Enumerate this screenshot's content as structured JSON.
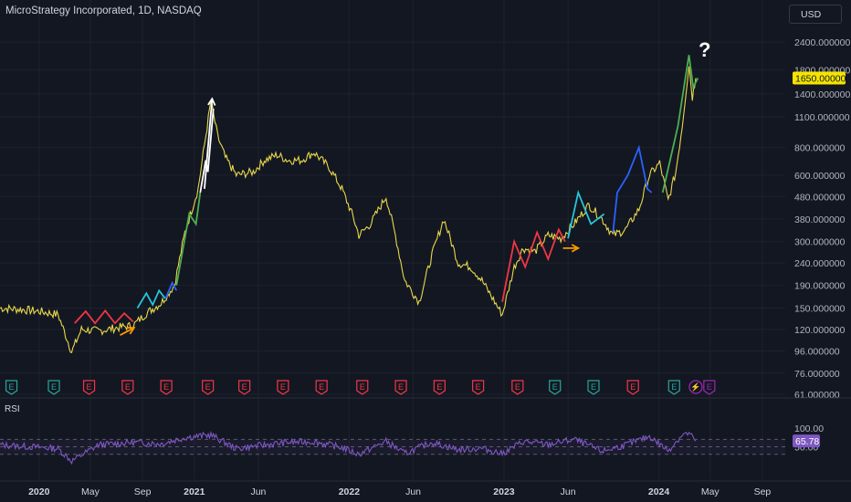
{
  "header": {
    "title": "MicroStrategy Incorporated, 1D, NASDAQ",
    "currency": "USD"
  },
  "colors": {
    "background": "#131722",
    "price": "#e8d84a",
    "red_zigzag": "#f23645",
    "blue_zigzag": "#2962ff",
    "cyan_zigzag": "#26c6da",
    "green_zigzag": "#4caf50",
    "orange_arrow": "#ff9800",
    "rsi": "#7e57c2",
    "current_price_bg": "#f5e400"
  },
  "annotations": {
    "question_mark": "?"
  },
  "earnings_markers": [
    {
      "label": "E",
      "type": "positive"
    },
    {
      "label": "E",
      "type": "positive"
    },
    {
      "label": "E",
      "type": "negative"
    },
    {
      "label": "E",
      "type": "negative"
    },
    {
      "label": "E",
      "type": "negative"
    },
    {
      "label": "E",
      "type": "negative"
    },
    {
      "label": "E",
      "type": "negative"
    },
    {
      "label": "E",
      "type": "negative"
    },
    {
      "label": "E",
      "type": "negative"
    },
    {
      "label": "E",
      "type": "negative"
    },
    {
      "label": "E",
      "type": "negative"
    },
    {
      "label": "E",
      "type": "negative"
    },
    {
      "label": "E",
      "type": "negative"
    },
    {
      "label": "E",
      "type": "negative"
    },
    {
      "label": "E",
      "type": "positive"
    },
    {
      "label": "E",
      "type": "positive"
    },
    {
      "label": "E",
      "type": "negative"
    },
    {
      "label": "E",
      "type": "positive"
    },
    {
      "label": "⚡",
      "type": "split"
    },
    {
      "label": "E",
      "type": "upcoming"
    }
  ],
  "chart_data": [
    {
      "type": "line",
      "title": "MicroStrategy Incorporated, 1D, NASDAQ",
      "scale": "log",
      "ylim": [
        61,
        2800
      ],
      "y_ticks": [
        "2400.000000",
        "1800.000000",
        "1400.000000",
        "1100.000000",
        "800.000000",
        "600.000000",
        "480.000000",
        "380.000000",
        "300.000000",
        "240.000000",
        "190.000000",
        "150.000000",
        "120.000000",
        "96.000000",
        "76.000000",
        "61.000000"
      ],
      "current_price_label": "1650.000000",
      "x_ticks": [
        "2020",
        "May",
        "Sep",
        "2021",
        "Jun",
        "2022",
        "Jun",
        "2023",
        "Jun",
        "2024",
        "May",
        "Sep"
      ],
      "series": [
        {
          "x": [
            "2019-10-01",
            "2019-11-15",
            "2020-01-01",
            "2020-02-15",
            "2020-03-18",
            "2020-04-10",
            "2020-05-20",
            "2020-07-01",
            "2020-08-10",
            "2020-09-10",
            "2020-10-15",
            "2020-11-15",
            "2020-12-10",
            "2021-01-10",
            "2021-02-09",
            "2021-02-25",
            "2021-03-15",
            "2021-04-10",
            "2021-05-20",
            "2021-06-15",
            "2021-07-15",
            "2021-08-10",
            "2021-09-10",
            "2021-10-10",
            "2021-11-15",
            "2021-12-15",
            "2022-01-10",
            "2022-01-24",
            "2022-02-20",
            "2022-03-29",
            "2022-04-20",
            "2022-05-12",
            "2022-06-15",
            "2022-07-15",
            "2022-08-12",
            "2022-09-15",
            "2022-10-15",
            "2022-11-10",
            "2022-12-28",
            "2023-01-25",
            "2023-02-15",
            "2023-03-15",
            "2023-04-15",
            "2023-05-15",
            "2023-06-15",
            "2023-07-20",
            "2023-08-20",
            "2023-09-15",
            "2023-10-15",
            "2023-11-15",
            "2023-12-10",
            "2024-01-03",
            "2024-01-23",
            "2024-02-10",
            "2024-02-25",
            "2024-03-12",
            "2024-03-20",
            "2024-03-28"
          ],
          "y": [
            150,
            148,
            145,
            140,
            95,
            120,
            118,
            122,
            125,
            142,
            158,
            190,
            330,
            520,
            1300,
            900,
            720,
            600,
            620,
            700,
            740,
            700,
            700,
            760,
            650,
            520,
            390,
            320,
            360,
            480,
            320,
            200,
            160,
            260,
            380,
            240,
            230,
            200,
            140,
            230,
            280,
            270,
            320,
            310,
            360,
            440,
            380,
            320,
            340,
            420,
            600,
            680,
            460,
            620,
            1000,
            1900,
            1350,
            1650
          ]
        }
      ]
    },
    {
      "type": "line",
      "title": "RSI",
      "ylim": [
        0,
        100
      ],
      "y_ticks": [
        "100.00",
        "50.00"
      ],
      "current_value_label": "65.78",
      "series": [
        {
          "name": "RSI",
          "x": [
            "2019-10-01",
            "2019-12-15",
            "2020-02-15",
            "2020-03-18",
            "2020-05-20",
            "2020-08-10",
            "2020-10-15",
            "2020-12-10",
            "2021-02-09",
            "2021-04-10",
            "2021-06-15",
            "2021-08-10",
            "2021-10-10",
            "2021-12-15",
            "2022-01-24",
            "2022-03-29",
            "2022-05-12",
            "2022-07-15",
            "2022-09-15",
            "2022-11-10",
            "2022-12-28",
            "2023-02-15",
            "2023-04-15",
            "2023-06-15",
            "2023-08-20",
            "2023-10-15",
            "2023-12-10",
            "2024-01-23",
            "2024-02-25",
            "2024-03-12",
            "2024-03-28"
          ],
          "y": [
            55,
            50,
            45,
            12,
            55,
            62,
            58,
            75,
            82,
            45,
            55,
            62,
            64,
            48,
            30,
            65,
            32,
            62,
            42,
            46,
            32,
            64,
            56,
            70,
            38,
            55,
            78,
            40,
            82,
            86,
            65.78
          ]
        }
      ]
    }
  ]
}
